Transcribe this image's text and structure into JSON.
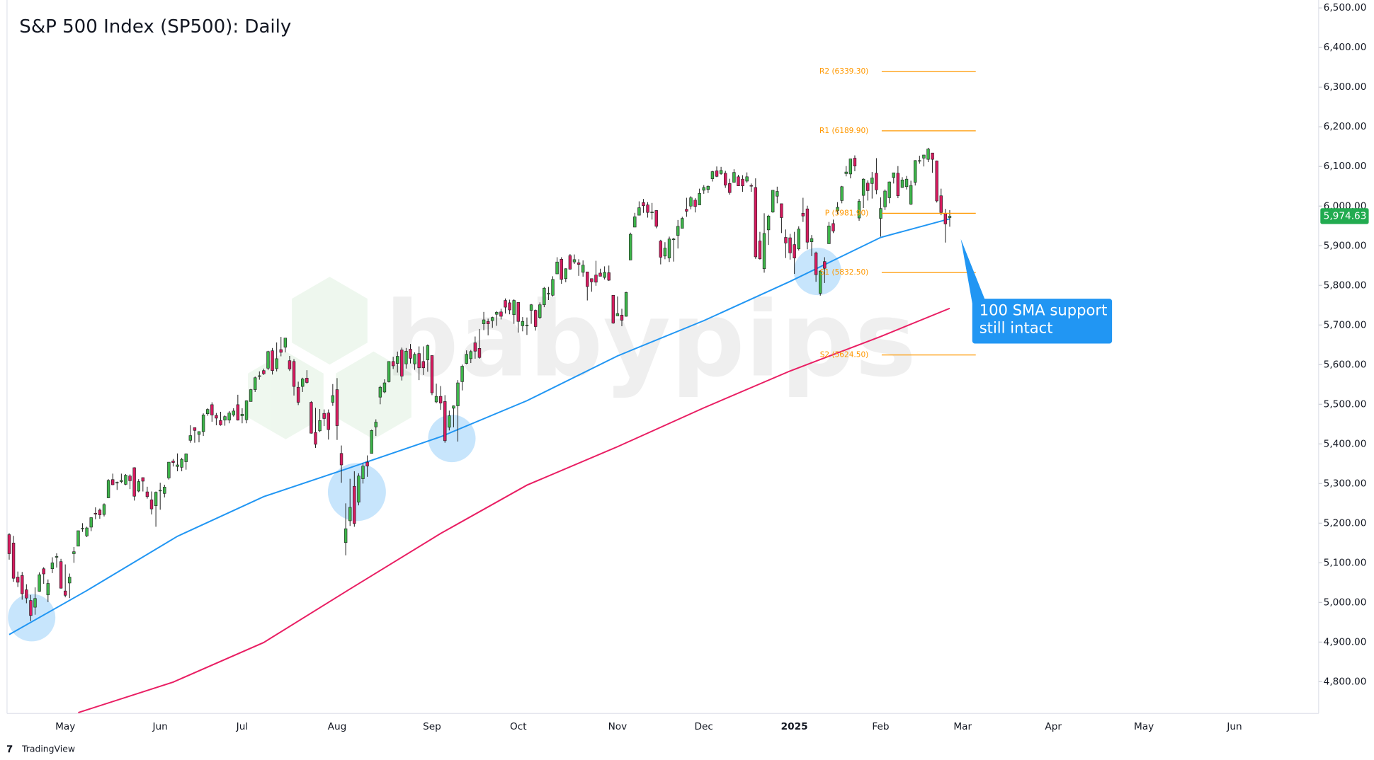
{
  "chart_data": {
    "type": "candlestick",
    "title": "S&P 500 Index (SP500): Daily",
    "watermark": "babypips",
    "footer": "TradingView",
    "up_color": "#3db54a",
    "down_color": "#d81b60",
    "wick_color": "#1e1e1e",
    "xlim": [
      -0.5,
      303.5
    ],
    "xticks": [
      {
        "value": 13,
        "label": "May"
      },
      {
        "value": 35,
        "label": "Jun"
      },
      {
        "value": 54,
        "label": "Jul"
      },
      {
        "value": 76,
        "label": "Aug"
      },
      {
        "value": 98,
        "label": "Sep"
      },
      {
        "value": 118,
        "label": "Oct"
      },
      {
        "value": 141,
        "label": "Nov"
      },
      {
        "value": 161,
        "label": "Dec"
      },
      {
        "value": 182,
        "label": "2025"
      },
      {
        "value": 202,
        "label": "Feb"
      },
      {
        "value": 221,
        "label": "Mar"
      },
      {
        "value": 242,
        "label": "Apr"
      },
      {
        "value": 263,
        "label": "May"
      },
      {
        "value": 284,
        "label": "Jun"
      }
    ],
    "ylim": [
      4720,
      6520
    ],
    "yticks": [
      {
        "value": 4800,
        "label": "4,800.00"
      },
      {
        "value": 4900,
        "label": "4,900.00"
      },
      {
        "value": 5000,
        "label": "5,000.00"
      },
      {
        "value": 5100,
        "label": "5,100.00"
      },
      {
        "value": 5200,
        "label": "5,200.00"
      },
      {
        "value": 5300,
        "label": "5,300.00"
      },
      {
        "value": 5400,
        "label": "5,400.00"
      },
      {
        "value": 5500,
        "label": "5,500.00"
      },
      {
        "value": 5600,
        "label": "5,600.00"
      },
      {
        "value": 5700,
        "label": "5,700.00"
      },
      {
        "value": 5800,
        "label": "5,800.00"
      },
      {
        "value": 5900,
        "label": "5,900.00"
      },
      {
        "value": 6000,
        "label": "6,000.00"
      },
      {
        "value": 6100,
        "label": "6,100.00"
      },
      {
        "value": 6200,
        "label": "6,200.00"
      },
      {
        "value": 6300,
        "label": "6,300.00"
      },
      {
        "value": 6400,
        "label": "6,400.00"
      },
      {
        "value": 6500,
        "label": "6,500.00"
      }
    ],
    "last_price": {
      "value": 5974.63,
      "label": "5,974.63",
      "color": "#22ab50"
    },
    "pivot_color": "#ff9800",
    "pivots": [
      {
        "label": "R2 (6339.30)",
        "value": 6339.3
      },
      {
        "label": "R1 (6189.90)",
        "value": 6189.9
      },
      {
        "label": "P (5981.90)",
        "value": 5981.9
      },
      {
        "label": "S1 (5832.50)",
        "value": 5832.5
      },
      {
        "label": "S2 (5624.50)",
        "value": 5624.5
      }
    ],
    "annotation": {
      "lines": [
        "100 SMA support",
        "still intact"
      ],
      "color": "#2196f3"
    },
    "lines": [
      {
        "color": "#2196f3",
        "x": [
          0,
          18,
          39,
          59,
          79,
          100,
          120,
          141,
          161,
          181,
          202,
          218
        ],
        "values": [
          4919,
          5030,
          5167,
          5267,
          5340,
          5418,
          5509,
          5622,
          5711,
          5810,
          5921,
          5968
        ]
      },
      {
        "color": "#e91e63",
        "x": [
          16,
          38,
          59,
          79,
          100,
          120,
          141,
          161,
          181,
          202,
          218
        ],
        "values": [
          4722,
          4799,
          4899,
          5034,
          5174,
          5296,
          5393,
          5491,
          5584,
          5671,
          5742
        ]
      }
    ],
    "candles": [
      [
        5171,
        5175,
        5108,
        5123
      ],
      [
        5150,
        5168,
        5052,
        5061
      ],
      [
        5064,
        5078,
        5039,
        5051
      ],
      [
        5068,
        5077,
        5007,
        5022
      ],
      [
        5032,
        5046,
        4998,
        5011
      ],
      [
        5005,
        5019,
        4953,
        4967
      ],
      [
        4988,
        5038,
        4969,
        5010
      ],
      [
        5028,
        5076,
        5027,
        5070
      ],
      [
        5085,
        5089,
        5047,
        5072
      ],
      [
        5019,
        5058,
        5001,
        5048
      ],
      [
        5085,
        5114,
        5074,
        5100
      ],
      [
        5114,
        5124,
        5088,
        5116
      ],
      [
        5103,
        5110,
        5035,
        5036
      ],
      [
        5029,
        5096,
        5013,
        5018
      ],
      [
        5049,
        5073,
        5011,
        5064
      ],
      [
        5123,
        5140,
        5100,
        5128
      ],
      [
        5142,
        5181,
        5142,
        5181
      ],
      [
        5187,
        5200,
        5178,
        5187
      ],
      [
        5168,
        5191,
        5165,
        5188
      ],
      [
        5190,
        5215,
        5180,
        5214
      ],
      [
        5225,
        5240,
        5210,
        5223
      ],
      [
        5233,
        5237,
        5211,
        5221
      ],
      [
        5222,
        5250,
        5217,
        5247
      ],
      [
        5264,
        5311,
        5263,
        5308
      ],
      [
        5310,
        5325,
        5296,
        5297
      ],
      [
        5303,
        5305,
        5284,
        5303
      ],
      [
        5305,
        5325,
        5301,
        5308
      ],
      [
        5298,
        5324,
        5296,
        5321
      ],
      [
        5319,
        5323,
        5286,
        5307
      ],
      [
        5340,
        5341,
        5257,
        5268
      ],
      [
        5281,
        5311,
        5278,
        5305
      ],
      [
        5315,
        5315,
        5280,
        5306
      ],
      [
        5279,
        5292,
        5262,
        5267
      ],
      [
        5259,
        5280,
        5222,
        5236
      ],
      [
        5244,
        5280,
        5191,
        5278
      ],
      [
        5283,
        5302,
        5234,
        5283
      ],
      [
        5275,
        5297,
        5265,
        5291
      ],
      [
        5314,
        5354,
        5310,
        5354
      ],
      [
        5357,
        5362,
        5343,
        5353
      ],
      [
        5343,
        5376,
        5331,
        5347
      ],
      [
        5341,
        5365,
        5331,
        5361
      ],
      [
        5355,
        5376,
        5335,
        5375
      ],
      [
        5409,
        5447,
        5403,
        5421
      ],
      [
        5441,
        5441,
        5403,
        5434
      ],
      [
        5424,
        5432,
        5404,
        5431
      ],
      [
        5431,
        5477,
        5420,
        5473
      ],
      [
        5476,
        5490,
        5471,
        5487
      ],
      [
        5499,
        5505,
        5456,
        5473
      ],
      [
        5472,
        5478,
        5447,
        5465
      ],
      [
        5459,
        5481,
        5446,
        5448
      ],
      [
        5460,
        5472,
        5446,
        5469
      ],
      [
        5460,
        5483,
        5452,
        5478
      ],
      [
        5473,
        5490,
        5469,
        5483
      ],
      [
        5499,
        5524,
        5459,
        5460
      ],
      [
        5471,
        5490,
        5452,
        5475
      ],
      [
        5461,
        5510,
        5452,
        5509
      ],
      [
        5507,
        5539,
        5507,
        5537
      ],
      [
        5537,
        5570,
        5531,
        5567
      ],
      [
        5572,
        5583,
        5562,
        5572
      ],
      [
        5585,
        5590,
        5574,
        5577
      ],
      [
        5591,
        5635,
        5586,
        5633
      ],
      [
        5635,
        5642,
        5575,
        5585
      ],
      [
        5590,
        5656,
        5583,
        5615
      ],
      [
        5638,
        5670,
        5621,
        5631
      ],
      [
        5644,
        5667,
        5631,
        5667
      ],
      [
        5610,
        5622,
        5584,
        5589
      ],
      [
        5608,
        5614,
        5522,
        5545
      ],
      [
        5543,
        5557,
        5498,
        5505
      ],
      [
        5545,
        5567,
        5531,
        5564
      ],
      [
        5566,
        5586,
        5552,
        5555
      ],
      [
        5505,
        5508,
        5426,
        5427
      ],
      [
        5429,
        5491,
        5390,
        5399
      ],
      [
        5433,
        5488,
        5430,
        5459
      ],
      [
        5477,
        5487,
        5445,
        5464
      ],
      [
        5478,
        5487,
        5411,
        5436
      ],
      [
        5505,
        5551,
        5496,
        5522
      ],
      [
        5537,
        5566,
        5410,
        5446
      ],
      [
        5376,
        5396,
        5302,
        5347
      ],
      [
        5151,
        5250,
        5119,
        5186
      ],
      [
        5206,
        5312,
        5193,
        5240
      ],
      [
        5293,
        5331,
        5191,
        5199
      ],
      [
        5253,
        5326,
        5245,
        5319
      ],
      [
        5312,
        5351,
        5300,
        5344
      ],
      [
        5354,
        5371,
        5317,
        5344
      ],
      [
        5376,
        5436,
        5376,
        5434
      ],
      [
        5443,
        5462,
        5420,
        5455
      ],
      [
        5518,
        5547,
        5500,
        5543
      ],
      [
        5531,
        5563,
        5528,
        5554
      ],
      [
        5557,
        5608,
        5555,
        5608
      ],
      [
        5608,
        5620,
        5589,
        5597
      ],
      [
        5603,
        5633,
        5580,
        5621
      ],
      [
        5637,
        5643,
        5560,
        5571
      ],
      [
        5602,
        5642,
        5590,
        5634
      ],
      [
        5639,
        5652,
        5603,
        5616
      ],
      [
        5602,
        5631,
        5587,
        5626
      ],
      [
        5628,
        5646,
        5561,
        5592
      ],
      [
        5608,
        5646,
        5574,
        5592
      ],
      [
        5612,
        5651,
        5582,
        5648
      ],
      [
        5623,
        5623,
        5523,
        5529
      ],
      [
        5506,
        5552,
        5503,
        5520
      ],
      [
        5520,
        5546,
        5486,
        5503
      ],
      [
        5507,
        5523,
        5403,
        5408
      ],
      [
        5442,
        5484,
        5434,
        5471
      ],
      [
        5490,
        5497,
        5442,
        5496
      ],
      [
        5496,
        5561,
        5406,
        5554
      ],
      [
        5557,
        5600,
        5535,
        5596
      ],
      [
        5603,
        5636,
        5601,
        5626
      ],
      [
        5615,
        5637,
        5604,
        5633
      ],
      [
        5655,
        5671,
        5615,
        5634
      ],
      [
        5641,
        5690,
        5615,
        5618
      ],
      [
        5703,
        5733,
        5687,
        5713
      ],
      [
        5709,
        5716,
        5674,
        5703
      ],
      [
        5711,
        5721,
        5693,
        5719
      ],
      [
        5727,
        5735,
        5698,
        5732
      ],
      [
        5733,
        5741,
        5714,
        5722
      ],
      [
        5762,
        5767,
        5729,
        5745
      ],
      [
        5756,
        5764,
        5727,
        5738
      ],
      [
        5726,
        5765,
        5703,
        5762
      ],
      [
        5757,
        5757,
        5681,
        5709
      ],
      [
        5698,
        5720,
        5684,
        5709
      ],
      [
        5698,
        5719,
        5675,
        5700
      ],
      [
        5737,
        5753,
        5703,
        5751
      ],
      [
        5737,
        5739,
        5686,
        5696
      ],
      [
        5719,
        5757,
        5715,
        5751
      ],
      [
        5751,
        5796,
        5745,
        5793
      ],
      [
        5778,
        5796,
        5763,
        5780
      ],
      [
        5775,
        5823,
        5772,
        5815
      ],
      [
        5829,
        5871,
        5829,
        5859
      ],
      [
        5866,
        5871,
        5804,
        5815
      ],
      [
        5817,
        5843,
        5808,
        5842
      ],
      [
        5875,
        5879,
        5840,
        5841
      ],
      [
        5859,
        5878,
        5854,
        5865
      ],
      [
        5857,
        5866,
        5824,
        5853
      ],
      [
        5833,
        5863,
        5822,
        5851
      ],
      [
        5834,
        5834,
        5762,
        5797
      ],
      [
        5817,
        5817,
        5784,
        5809
      ],
      [
        5826,
        5862,
        5799,
        5808
      ],
      [
        5831,
        5842,
        5823,
        5823
      ],
      [
        5820,
        5848,
        5815,
        5833
      ],
      [
        5832,
        5850,
        5811,
        5813
      ],
      [
        5775,
        5775,
        5703,
        5705
      ],
      [
        5723,
        5772,
        5723,
        5729
      ],
      [
        5725,
        5741,
        5697,
        5712
      ],
      [
        5722,
        5784,
        5721,
        5782
      ],
      [
        5864,
        5933,
        5864,
        5929
      ],
      [
        5947,
        5983,
        5947,
        5973
      ],
      [
        5977,
        6012,
        5977,
        5996
      ],
      [
        6009,
        6018,
        5983,
        6001
      ],
      [
        6003,
        6010,
        5971,
        5984
      ],
      [
        5985,
        6008,
        5966,
        5985
      ],
      [
        5989,
        5990,
        5944,
        5949
      ],
      [
        5912,
        5915,
        5853,
        5871
      ],
      [
        5874,
        5909,
        5866,
        5894
      ],
      [
        5869,
        5923,
        5859,
        5917
      ],
      [
        5917,
        5920,
        5860,
        5917
      ],
      [
        5926,
        5965,
        5893,
        5949
      ],
      [
        5944,
        5973,
        5944,
        5969
      ],
      [
        5992,
        6021,
        5973,
        5987
      ],
      [
        6000,
        6025,
        5992,
        6021
      ],
      [
        6015,
        6020,
        5984,
        5999
      ],
      [
        6003,
        6044,
        6003,
        6032
      ],
      [
        6040,
        6053,
        6031,
        6047
      ],
      [
        6042,
        6052,
        6033,
        6050
      ],
      [
        6069,
        6089,
        6062,
        6087
      ],
      [
        6089,
        6100,
        6073,
        6075
      ],
      [
        6082,
        6099,
        6079,
        6090
      ],
      [
        6083,
        6089,
        6046,
        6053
      ],
      [
        6057,
        6069,
        6029,
        6034
      ],
      [
        6060,
        6093,
        6060,
        6085
      ],
      [
        6074,
        6079,
        6051,
        6051
      ],
      [
        6068,
        6078,
        6036,
        6051
      ],
      [
        6063,
        6085,
        6059,
        6074
      ],
      [
        6052,
        6057,
        6036,
        6051
      ],
      [
        6047,
        6070,
        5867,
        5872
      ],
      [
        5912,
        5935,
        5865,
        5867
      ],
      [
        5842,
        5982,
        5832,
        5931
      ],
      [
        5940,
        5978,
        5902,
        5975
      ],
      [
        5985,
        6040,
        5983,
        6040
      ],
      [
        6025,
        6049,
        6007,
        6037
      ],
      [
        6006,
        6006,
        5932,
        5971
      ],
      [
        5921,
        5941,
        5869,
        5907
      ],
      [
        5920,
        5930,
        5865,
        5882
      ],
      [
        5903,
        5935,
        5829,
        5869
      ],
      [
        5892,
        5949,
        5888,
        5942
      ],
      [
        5982,
        6021,
        5960,
        5975
      ],
      [
        5993,
        6001,
        5891,
        5909
      ],
      [
        5910,
        5927,
        5874,
        5918
      ],
      [
        5882,
        5885,
        5809,
        5827
      ],
      [
        5780,
        5838,
        5774,
        5836
      ],
      [
        5860,
        5871,
        5806,
        5843
      ],
      [
        5905,
        5960,
        5905,
        5950
      ],
      [
        5956,
        5966,
        5932,
        5937
      ],
      [
        5988,
        6010,
        5980,
        5997
      ],
      [
        6014,
        6051,
        6007,
        6049
      ],
      [
        6082,
        6101,
        6075,
        6086
      ],
      [
        6081,
        6119,
        6070,
        6119
      ],
      [
        6121,
        6128,
        6088,
        6101
      ],
      [
        5970,
        6018,
        5963,
        6012
      ],
      [
        6027,
        6070,
        5995,
        6068
      ],
      [
        6058,
        6065,
        6014,
        6039
      ],
      [
        6057,
        6086,
        6019,
        6071
      ],
      [
        6083,
        6121,
        6030,
        6041
      ],
      [
        5969,
        6022,
        5923,
        5994
      ],
      [
        5998,
        6042,
        5990,
        6038
      ],
      [
        6021,
        6062,
        6007,
        6061
      ],
      [
        6072,
        6084,
        6057,
        6084
      ],
      [
        6083,
        6101,
        6020,
        6026
      ],
      [
        6047,
        6073,
        6046,
        6066
      ],
      [
        6049,
        6076,
        6042,
        6068
      ],
      [
        6005,
        6064,
        6003,
        6052
      ],
      [
        6060,
        6116,
        6052,
        6115
      ],
      [
        6115,
        6127,
        6107,
        6115
      ],
      [
        6121,
        6129,
        6100,
        6129
      ],
      [
        6118,
        6147,
        6111,
        6144
      ],
      [
        6134,
        6134,
        6084,
        6118
      ],
      [
        6114,
        6115,
        6009,
        6013
      ],
      [
        6026,
        6044,
        5977,
        5984
      ],
      [
        5982,
        5993,
        5908,
        5955
      ],
      [
        5971,
        5990,
        5948,
        5974.63
      ]
    ]
  }
}
